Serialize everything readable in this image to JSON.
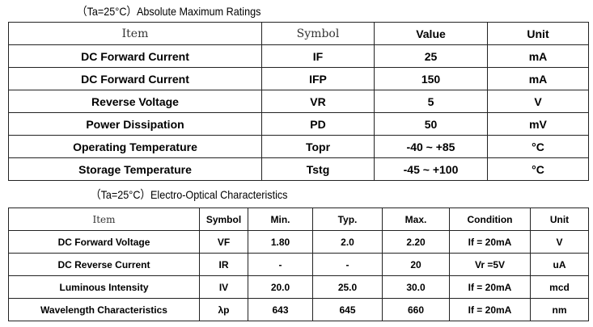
{
  "sections": [
    {
      "title": "（Ta=25°C）Absolute Maximum Ratings",
      "table": {
        "header": [
          "Item",
          "Symbol",
          "Value",
          "Unit"
        ],
        "rows": [
          [
            "DC Forward Current",
            "IF",
            "25",
            "mA"
          ],
          [
            "DC Forward Current",
            "IFP",
            "150",
            "mA"
          ],
          [
            "Reverse Voltage",
            "VR",
            "5",
            "V"
          ],
          [
            "Power Dissipation",
            "PD",
            "50",
            "mV"
          ],
          [
            "Operating Temperature",
            "Topr",
            "-40 ~ +85",
            "°C"
          ],
          [
            "Storage Temperature",
            "Tstg",
            "-45 ~ +100",
            "°C"
          ]
        ]
      }
    },
    {
      "title": "（Ta=25°C）Electro-Optical Characteristics",
      "table": {
        "header": [
          "Item",
          "Symbol",
          "Min.",
          "Typ.",
          "Max.",
          "Condition",
          "Unit"
        ],
        "rows": [
          [
            "DC Forward Voltage",
            "VF",
            "1.80",
            "2.0",
            "2.20",
            "If = 20mA",
            "V"
          ],
          [
            "DC Reverse Current",
            "IR",
            "-",
            "-",
            "20",
            "Vr =5V",
            "uA"
          ],
          [
            "Luminous Intensity",
            "IV",
            "20.0",
            "25.0",
            "30.0",
            "If = 20mA",
            "mcd"
          ],
          [
            "Wavelength Characteristics",
            "λp",
            "643",
            "645",
            "660",
            "If = 20mA",
            "nm"
          ]
        ]
      }
    }
  ]
}
